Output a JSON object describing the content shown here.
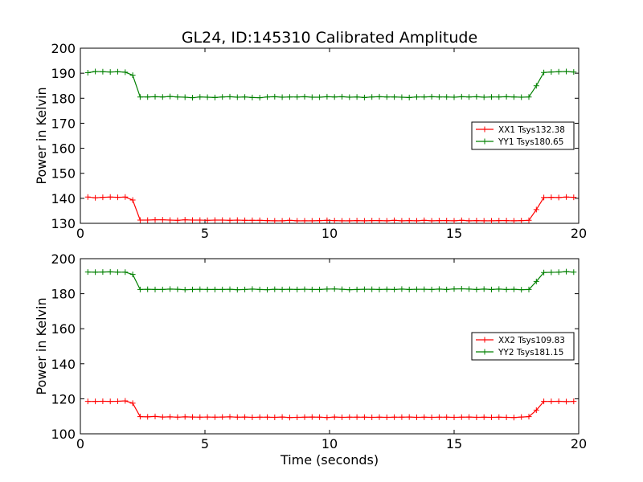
{
  "figure": {
    "title": "GL24, ID:145310 Calibrated Amplitude",
    "xlabel": "Time (seconds)"
  },
  "chart_data": [
    {
      "type": "line",
      "title": "GL24, ID:145310 Calibrated Amplitude",
      "xlabel": "",
      "ylabel": "Power in Kelvin",
      "xlim": [
        0,
        20
      ],
      "ylim": [
        130,
        200
      ],
      "xticks": [
        0,
        5,
        10,
        15,
        20
      ],
      "yticks": [
        130,
        140,
        150,
        160,
        170,
        180,
        190,
        200
      ],
      "grid": false,
      "legend_position": "right",
      "x": [
        0.3,
        0.6,
        0.9,
        1.2,
        1.5,
        1.8,
        2.1,
        2.4,
        2.7,
        3.0,
        3.3,
        3.6,
        3.9,
        4.2,
        4.5,
        4.8,
        5.1,
        5.4,
        5.7,
        6.0,
        6.3,
        6.6,
        6.9,
        7.2,
        7.5,
        7.8,
        8.1,
        8.4,
        8.7,
        9.0,
        9.3,
        9.6,
        9.9,
        10.2,
        10.5,
        10.8,
        11.1,
        11.4,
        11.7,
        12.0,
        12.3,
        12.6,
        12.9,
        13.2,
        13.5,
        13.8,
        14.1,
        14.4,
        14.7,
        15.0,
        15.3,
        15.6,
        15.9,
        16.2,
        16.5,
        16.8,
        17.1,
        17.4,
        17.7,
        18.0,
        18.3,
        18.6,
        18.9,
        19.2,
        19.5,
        19.8
      ],
      "series": [
        {
          "name": "XX1 Tsys132.38",
          "color": "#ff0000",
          "values": [
            140.5,
            140.2,
            140.4,
            140.5,
            140.4,
            140.5,
            139.3,
            131.3,
            131.3,
            131.4,
            131.4,
            131.3,
            131.2,
            131.4,
            131.3,
            131.3,
            131.2,
            131.3,
            131.3,
            131.2,
            131.3,
            131.2,
            131.2,
            131.2,
            131.1,
            131.0,
            131.0,
            131.2,
            131.0,
            131.0,
            131.0,
            131.1,
            131.2,
            131.1,
            131.0,
            131.0,
            131.1,
            131.0,
            131.1,
            131.1,
            131.0,
            131.2,
            131.0,
            131.1,
            131.0,
            131.2,
            131.0,
            131.1,
            131.1,
            131.0,
            131.2,
            131.0,
            131.1,
            131.0,
            131.0,
            131.1,
            131.1,
            131.0,
            131.1,
            131.2,
            135.5,
            140.3,
            140.4,
            140.3,
            140.5,
            140.4
          ]
        },
        {
          "name": "YY1 Tsys180.65",
          "color": "#008000",
          "values": [
            190.2,
            190.7,
            190.6,
            190.5,
            190.6,
            190.4,
            189.2,
            180.5,
            180.5,
            180.6,
            180.5,
            180.7,
            180.5,
            180.4,
            180.2,
            180.5,
            180.4,
            180.3,
            180.5,
            180.6,
            180.4,
            180.5,
            180.3,
            180.2,
            180.5,
            180.6,
            180.4,
            180.5,
            180.5,
            180.6,
            180.4,
            180.4,
            180.6,
            180.5,
            180.6,
            180.4,
            180.5,
            180.3,
            180.5,
            180.6,
            180.5,
            180.5,
            180.4,
            180.3,
            180.5,
            180.5,
            180.6,
            180.5,
            180.5,
            180.4,
            180.6,
            180.5,
            180.6,
            180.4,
            180.5,
            180.5,
            180.6,
            180.5,
            180.4,
            180.5,
            185.0,
            190.3,
            190.5,
            190.6,
            190.7,
            190.5
          ]
        }
      ]
    },
    {
      "type": "line",
      "title": "",
      "xlabel": "Time (seconds)",
      "ylabel": "Power in Kelvin",
      "xlim": [
        0,
        20
      ],
      "ylim": [
        100,
        200
      ],
      "xticks": [
        0,
        5,
        10,
        15,
        20
      ],
      "yticks": [
        100,
        120,
        140,
        160,
        180,
        200
      ],
      "grid": false,
      "legend_position": "right",
      "x": [
        0.3,
        0.6,
        0.9,
        1.2,
        1.5,
        1.8,
        2.1,
        2.4,
        2.7,
        3.0,
        3.3,
        3.6,
        3.9,
        4.2,
        4.5,
        4.8,
        5.1,
        5.4,
        5.7,
        6.0,
        6.3,
        6.6,
        6.9,
        7.2,
        7.5,
        7.8,
        8.1,
        8.4,
        8.7,
        9.0,
        9.3,
        9.6,
        9.9,
        10.2,
        10.5,
        10.8,
        11.1,
        11.4,
        11.7,
        12.0,
        12.3,
        12.6,
        12.9,
        13.2,
        13.5,
        13.8,
        14.1,
        14.4,
        14.7,
        15.0,
        15.3,
        15.6,
        15.9,
        16.2,
        16.5,
        16.8,
        17.1,
        17.4,
        17.7,
        18.0,
        18.3,
        18.6,
        18.9,
        19.2,
        19.5,
        19.8
      ],
      "series": [
        {
          "name": "XX2 Tsys109.83",
          "color": "#ff0000",
          "values": [
            118.5,
            118.5,
            118.6,
            118.5,
            118.6,
            118.8,
            117.5,
            109.8,
            109.7,
            109.9,
            109.6,
            109.7,
            109.5,
            109.7,
            109.6,
            109.5,
            109.6,
            109.5,
            109.6,
            109.7,
            109.5,
            109.6,
            109.4,
            109.5,
            109.5,
            109.4,
            109.6,
            109.3,
            109.4,
            109.5,
            109.6,
            109.5,
            109.3,
            109.6,
            109.4,
            109.5,
            109.5,
            109.5,
            109.4,
            109.5,
            109.4,
            109.5,
            109.5,
            109.6,
            109.4,
            109.5,
            109.4,
            109.5,
            109.5,
            109.4,
            109.5,
            109.6,
            109.4,
            109.5,
            109.4,
            109.5,
            109.4,
            109.3,
            109.6,
            109.8,
            113.5,
            118.5,
            118.5,
            118.6,
            118.4,
            118.5
          ]
        },
        {
          "name": "YY2 Tsys181.15",
          "color": "#008000",
          "values": [
            192.4,
            192.3,
            192.4,
            192.5,
            192.3,
            192.3,
            191.0,
            182.4,
            182.5,
            182.4,
            182.4,
            182.6,
            182.5,
            182.3,
            182.4,
            182.5,
            182.4,
            182.4,
            182.4,
            182.5,
            182.3,
            182.4,
            182.6,
            182.4,
            182.3,
            182.5,
            182.4,
            182.5,
            182.4,
            182.5,
            182.4,
            182.4,
            182.6,
            182.7,
            182.5,
            182.3,
            182.4,
            182.5,
            182.5,
            182.4,
            182.5,
            182.4,
            182.6,
            182.4,
            182.5,
            182.5,
            182.4,
            182.6,
            182.4,
            182.7,
            182.8,
            182.6,
            182.4,
            182.6,
            182.4,
            182.6,
            182.4,
            182.5,
            182.3,
            182.4,
            187.0,
            192.1,
            192.2,
            192.3,
            192.6,
            192.3
          ]
        }
      ]
    }
  ]
}
